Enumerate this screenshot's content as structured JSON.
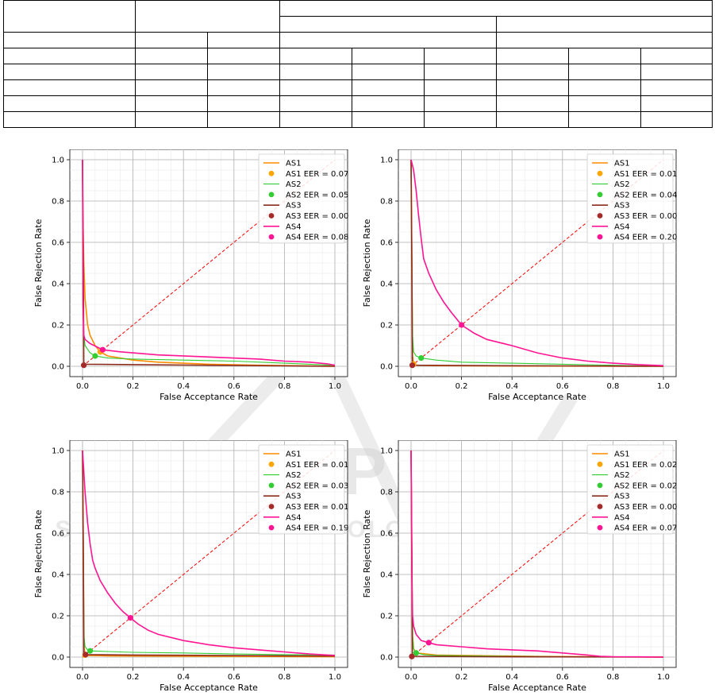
{
  "table": {
    "rows": 8
  },
  "watermark": {
    "line1": "SCITEPRESS",
    "line2": "SCIENCE AND TECHNOLOGY PUBLICATIONS"
  },
  "colors": {
    "AS1": "#ff8c00",
    "AS2": "#32cd32",
    "AS3": "#8b2c1c",
    "AS4": "#ff1493",
    "eer_line": "#ff0000",
    "AS1_marker": "#ffa500",
    "AS3_marker": "#a52a2a"
  },
  "chart_data": [
    {
      "type": "line",
      "xlabel": "False Acceptance Rate",
      "ylabel": "False Rejection Rate",
      "xlim": [
        0,
        1
      ],
      "ylim": [
        0,
        1
      ],
      "xticks": [
        "0.0",
        "0.2",
        "0.4",
        "0.6",
        "0.8",
        "1.0"
      ],
      "yticks": [
        "0.0",
        "0.2",
        "0.4",
        "0.6",
        "0.8",
        "1.0"
      ],
      "grid": true,
      "legend_position": "top-right",
      "series": [
        {
          "name": "AS1",
          "eer_label": "AS1 EER = 0.07",
          "eer": 0.07,
          "x": [
            0,
            0.001,
            0.005,
            0.01,
            0.02,
            0.03,
            0.05,
            0.07,
            0.1,
            0.2,
            0.3,
            0.5,
            0.7,
            1.0
          ],
          "y": [
            1,
            0.75,
            0.5,
            0.33,
            0.2,
            0.15,
            0.1,
            0.07,
            0.05,
            0.03,
            0.02,
            0.01,
            0.005,
            0
          ]
        },
        {
          "name": "AS2",
          "eer_label": "AS2 EER = 0.05",
          "eer": 0.05,
          "x": [
            0,
            0.001,
            0.005,
            0.01,
            0.03,
            0.05,
            0.1,
            0.2,
            0.4,
            0.6,
            0.8,
            1.0
          ],
          "y": [
            1,
            0.3,
            0.15,
            0.1,
            0.065,
            0.05,
            0.04,
            0.035,
            0.03,
            0.025,
            0.015,
            0.005
          ]
        },
        {
          "name": "AS3",
          "eer_label": "AS3 EER = 0.00",
          "eer": 0.005,
          "x": [
            0,
            0.003,
            0.005,
            0.01,
            0.2,
            0.5,
            0.8,
            1.0
          ],
          "y": [
            1,
            0.5,
            0.02,
            0.01,
            0.008,
            0.005,
            0.002,
            0
          ]
        },
        {
          "name": "AS4",
          "eer_label": "AS4 EER = 0.08",
          "eer": 0.08,
          "x": [
            0,
            0.002,
            0.005,
            0.01,
            0.03,
            0.08,
            0.15,
            0.3,
            0.5,
            0.7,
            0.8,
            0.9,
            0.97,
            1.0
          ],
          "y": [
            1,
            0.3,
            0.15,
            0.13,
            0.11,
            0.08,
            0.07,
            0.055,
            0.045,
            0.035,
            0.025,
            0.02,
            0.012,
            0.005
          ]
        }
      ]
    },
    {
      "type": "line",
      "xlabel": "False Acceptance Rate",
      "ylabel": "False Rejection Rate",
      "xlim": [
        0,
        1
      ],
      "ylim": [
        0,
        1
      ],
      "xticks": [
        "0.0",
        "0.2",
        "0.4",
        "0.6",
        "0.8",
        "1.0"
      ],
      "yticks": [
        "0.0",
        "0.2",
        "0.4",
        "0.6",
        "0.8",
        "1.0"
      ],
      "grid": true,
      "legend_position": "top-right",
      "series": [
        {
          "name": "AS1",
          "eer_label": "AS1 EER = 0.01",
          "eer": 0.01,
          "x": [
            0,
            0.003,
            0.006,
            0.01,
            0.02,
            0.1,
            0.5,
            1.0
          ],
          "y": [
            1,
            0.5,
            0.05,
            0.01,
            0.005,
            0.003,
            0.001,
            0
          ]
        },
        {
          "name": "AS2",
          "eer_label": "AS2 EER = 0.04",
          "eer": 0.04,
          "x": [
            0,
            0.003,
            0.006,
            0.01,
            0.02,
            0.04,
            0.1,
            0.2,
            0.4,
            0.6,
            0.8,
            1.0
          ],
          "y": [
            1,
            0.5,
            0.15,
            0.07,
            0.05,
            0.04,
            0.03,
            0.02,
            0.015,
            0.01,
            0.005,
            0
          ]
        },
        {
          "name": "AS3",
          "eer_label": "AS3 EER = 0.00",
          "eer": 0.005,
          "x": [
            0,
            0.003,
            0.005,
            0.01,
            0.3,
            0.6,
            1.0
          ],
          "y": [
            1,
            0.5,
            0.01,
            0.005,
            0.003,
            0.002,
            0
          ]
        },
        {
          "name": "AS4",
          "eer_label": "AS4 EER = 0.20",
          "eer": 0.2,
          "x": [
            0,
            0.01,
            0.02,
            0.03,
            0.04,
            0.05,
            0.07,
            0.1,
            0.13,
            0.16,
            0.2,
            0.25,
            0.3,
            0.4,
            0.5,
            0.6,
            0.7,
            0.8,
            0.9,
            1.0
          ],
          "y": [
            1,
            0.95,
            0.85,
            0.73,
            0.62,
            0.52,
            0.45,
            0.37,
            0.31,
            0.26,
            0.2,
            0.16,
            0.13,
            0.1,
            0.065,
            0.04,
            0.025,
            0.015,
            0.008,
            0.003
          ]
        }
      ]
    },
    {
      "type": "line",
      "xlabel": "False Acceptance Rate",
      "ylabel": "False Rejection Rate",
      "xlim": [
        0,
        1
      ],
      "ylim": [
        0,
        1
      ],
      "xticks": [
        "0.0",
        "0.2",
        "0.4",
        "0.6",
        "0.8",
        "1.0"
      ],
      "yticks": [
        "0.0",
        "0.2",
        "0.4",
        "0.6",
        "0.8",
        "1.0"
      ],
      "grid": true,
      "legend_position": "top-right",
      "series": [
        {
          "name": "AS1",
          "eer_label": "AS1 EER = 0.01",
          "eer": 0.01,
          "x": [
            0,
            0.003,
            0.006,
            0.01,
            0.02,
            0.1,
            0.5,
            1.0
          ],
          "y": [
            1,
            0.5,
            0.05,
            0.01,
            0.008,
            0.006,
            0.004,
            0.002
          ]
        },
        {
          "name": "AS2",
          "eer_label": "AS2 EER = 0.03",
          "eer": 0.03,
          "x": [
            0,
            0.003,
            0.006,
            0.01,
            0.02,
            0.03,
            0.1,
            0.2,
            0.4,
            0.6,
            0.8,
            1.0
          ],
          "y": [
            1,
            0.5,
            0.1,
            0.05,
            0.035,
            0.03,
            0.027,
            0.023,
            0.02,
            0.015,
            0.012,
            0.01
          ]
        },
        {
          "name": "AS3",
          "eer_label": "AS3 EER = 0.01",
          "eer": 0.012,
          "x": [
            0,
            0.003,
            0.005,
            0.012,
            0.2,
            0.5,
            0.8,
            1.0
          ],
          "y": [
            1,
            0.5,
            0.015,
            0.012,
            0.01,
            0.008,
            0.006,
            0.005
          ]
        },
        {
          "name": "AS4",
          "eer_label": "AS4 EER = 0.19",
          "eer": 0.19,
          "x": [
            0,
            0.005,
            0.01,
            0.02,
            0.03,
            0.04,
            0.05,
            0.07,
            0.1,
            0.13,
            0.16,
            0.19,
            0.22,
            0.26,
            0.3,
            0.4,
            0.5,
            0.6,
            0.7,
            0.8,
            0.9,
            1.0
          ],
          "y": [
            1,
            0.9,
            0.8,
            0.65,
            0.55,
            0.47,
            0.43,
            0.37,
            0.31,
            0.26,
            0.22,
            0.19,
            0.16,
            0.13,
            0.11,
            0.08,
            0.06,
            0.045,
            0.035,
            0.025,
            0.015,
            0.008
          ]
        }
      ]
    },
    {
      "type": "line",
      "xlabel": "False Acceptance Rate",
      "ylabel": "False Rejection Rate",
      "xlim": [
        0,
        1
      ],
      "ylim": [
        0,
        1
      ],
      "xticks": [
        "0.0",
        "0.2",
        "0.4",
        "0.6",
        "0.8",
        "1.0"
      ],
      "yticks": [
        "0.0",
        "0.2",
        "0.4",
        "0.6",
        "0.8",
        "1.0"
      ],
      "grid": true,
      "legend_position": "top-right",
      "series": [
        {
          "name": "AS1",
          "eer_label": "AS1 EER = 0.02",
          "eer": 0.02,
          "x": [
            0,
            0.003,
            0.006,
            0.01,
            0.02,
            0.1,
            0.5,
            1.0
          ],
          "y": [
            1,
            0.5,
            0.1,
            0.04,
            0.02,
            0.01,
            0.003,
            0
          ]
        },
        {
          "name": "AS2",
          "eer_label": "AS2 EER = 0.02",
          "eer": 0.02,
          "x": [
            0,
            0.003,
            0.006,
            0.01,
            0.02,
            0.05,
            0.1,
            0.3,
            0.6,
            1.0
          ],
          "y": [
            1,
            0.5,
            0.1,
            0.04,
            0.02,
            0.012,
            0.008,
            0.005,
            0.002,
            0
          ]
        },
        {
          "name": "AS3",
          "eer_label": "AS3 EER = 0.00",
          "eer": 0.003,
          "x": [
            0,
            0.003,
            0.005,
            0.01,
            0.3,
            0.6,
            1.0
          ],
          "y": [
            1,
            0.5,
            0.01,
            0.004,
            0.002,
            0.001,
            0
          ]
        },
        {
          "name": "AS4",
          "eer_label": "AS4 EER = 0.07",
          "eer": 0.07,
          "x": [
            0,
            0.003,
            0.006,
            0.01,
            0.02,
            0.04,
            0.07,
            0.1,
            0.2,
            0.3,
            0.4,
            0.5,
            0.6,
            0.7,
            0.75,
            0.8,
            0.9,
            1.0
          ],
          "y": [
            1,
            0.4,
            0.2,
            0.15,
            0.11,
            0.08,
            0.07,
            0.06,
            0.05,
            0.04,
            0.035,
            0.03,
            0.02,
            0.01,
            0.004,
            0.002,
            0.001,
            0
          ]
        }
      ]
    }
  ]
}
